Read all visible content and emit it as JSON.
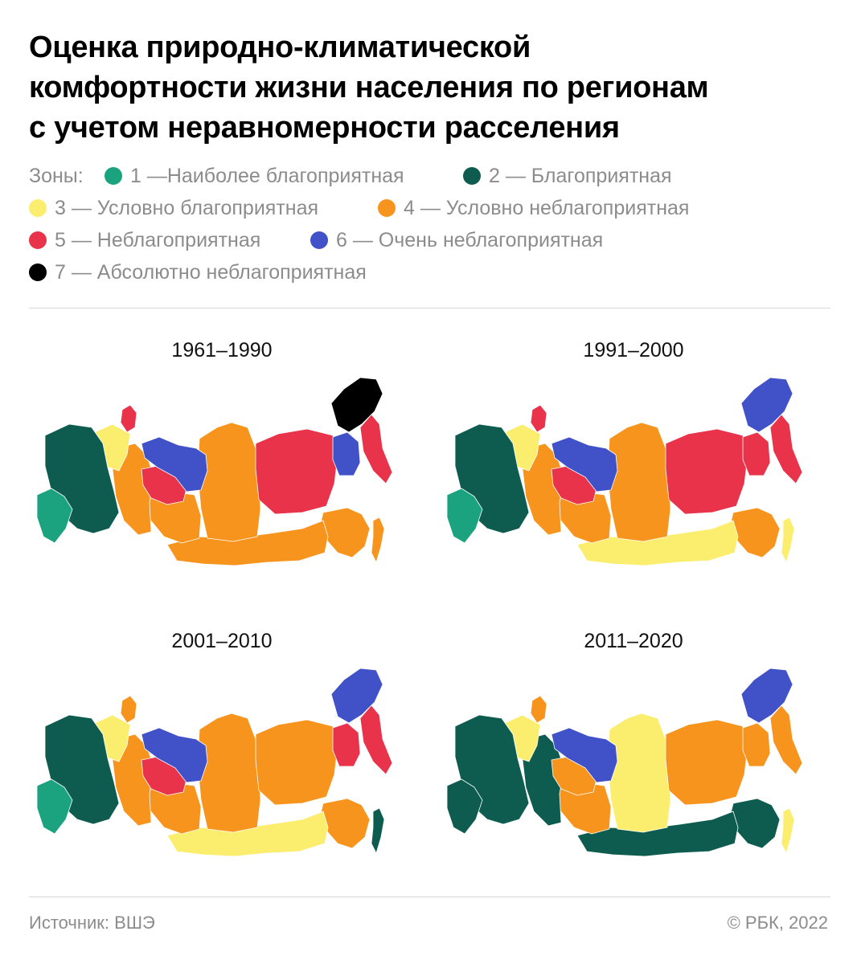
{
  "title": {
    "line1": "Оценка природно-климатической",
    "line2": "комфортности жизни населения по регионам",
    "line3": "с учетом неравномерности расселения"
  },
  "legend": {
    "label": "Зоны:",
    "items": [
      {
        "text": "1 —Наиболее благоприятная",
        "color": "#1aa37e"
      },
      {
        "text": "2 — Благоприятная",
        "color": "#0d5c4f"
      },
      {
        "text": "3 — Условно благоприятная",
        "color": "#fbed6d"
      },
      {
        "text": "4 — Условно неблагоприятная",
        "color": "#f7941d"
      },
      {
        "text": "5 — Неблагоприятная",
        "color": "#e8334a"
      },
      {
        "text": "6 — Очень неблагоприятная",
        "color": "#4152c8"
      },
      {
        "text": "7 — Абсолютно неблагоприятная",
        "color": "#000000"
      }
    ]
  },
  "maps": [
    {
      "period": "1961–1990",
      "zones": {
        "west": "#0d5c4f",
        "southwest": "#1aa37e",
        "northwest": "#fbed6d",
        "volga": "#f7941d",
        "urals": "#e8334a",
        "yamal": "#4152c8",
        "westsib": "#f7941d",
        "krasnoyarsk": "#f7941d",
        "southsib": "#f7941d",
        "yakutia": "#e8334a",
        "magadan": "#4152c8",
        "chukotka": "#000000",
        "kamchatka": "#e8334a",
        "fareast": "#f7941d",
        "sakhalin": "#f7941d",
        "murmansk": "#e8334a"
      }
    },
    {
      "period": "1991–2000",
      "zones": {
        "west": "#0d5c4f",
        "southwest": "#1aa37e",
        "northwest": "#fbed6d",
        "volga": "#f7941d",
        "urals": "#e8334a",
        "yamal": "#4152c8",
        "westsib": "#f7941d",
        "krasnoyarsk": "#f7941d",
        "southsib": "#fbed6d",
        "yakutia": "#e8334a",
        "magadan": "#e8334a",
        "chukotka": "#4152c8",
        "kamchatka": "#e8334a",
        "fareast": "#f7941d",
        "sakhalin": "#fbed6d",
        "murmansk": "#e8334a"
      }
    },
    {
      "period": "2001–2010",
      "zones": {
        "west": "#0d5c4f",
        "southwest": "#1aa37e",
        "northwest": "#fbed6d",
        "volga": "#f7941d",
        "urals": "#e8334a",
        "yamal": "#4152c8",
        "westsib": "#f7941d",
        "krasnoyarsk": "#f7941d",
        "southsib": "#fbed6d",
        "yakutia": "#f7941d",
        "magadan": "#e8334a",
        "chukotka": "#4152c8",
        "kamchatka": "#e8334a",
        "fareast": "#f7941d",
        "sakhalin": "#0d5c4f",
        "murmansk": "#f7941d"
      }
    },
    {
      "period": "2011–2020",
      "zones": {
        "west": "#0d5c4f",
        "southwest": "#0d5c4f",
        "northwest": "#fbed6d",
        "volga": "#0d5c4f",
        "urals": "#f7941d",
        "yamal": "#4152c8",
        "westsib": "#f7941d",
        "krasnoyarsk": "#fbed6d",
        "southsib": "#0d5c4f",
        "yakutia": "#f7941d",
        "magadan": "#f7941d",
        "chukotka": "#4152c8",
        "kamchatka": "#f7941d",
        "fareast": "#0d5c4f",
        "sakhalin": "#fbed6d",
        "murmansk": "#f7941d"
      }
    }
  ],
  "footer": {
    "source": "Источник: ВШЭ",
    "copyright": "© РБК, 2022"
  }
}
